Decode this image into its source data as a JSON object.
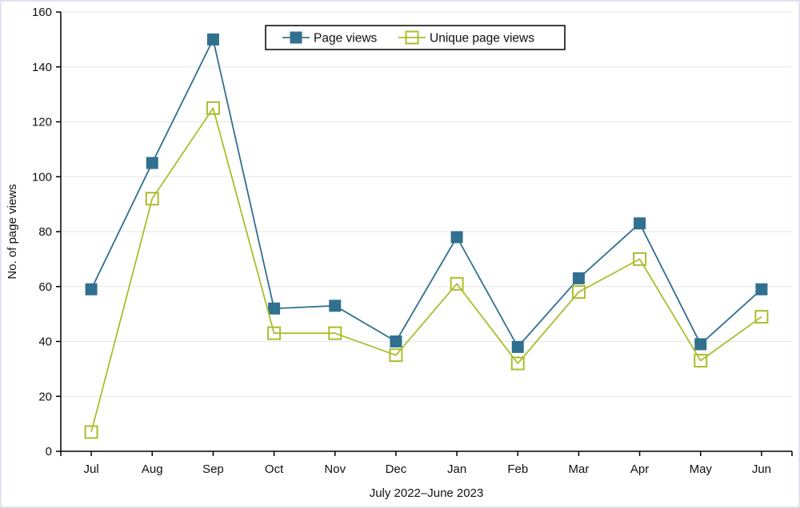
{
  "page": {
    "background": "#ffffff",
    "border_color": "#dfe5ee"
  },
  "chart_data": {
    "type": "line",
    "title": "",
    "categories": [
      "Jul",
      "Aug",
      "Sep",
      "Oct",
      "Nov",
      "Dec",
      "Jan",
      "Feb",
      "Mar",
      "Apr",
      "May",
      "Jun"
    ],
    "series": [
      {
        "name": "Page views",
        "color": "#31708f",
        "marker": "filled-square",
        "values": [
          59,
          105,
          150,
          52,
          53,
          40,
          78,
          38,
          63,
          83,
          39,
          59
        ]
      },
      {
        "name": "Unique page views",
        "color": "#abbd2c",
        "marker": "open-square",
        "values": [
          7,
          92,
          125,
          43,
          43,
          35,
          61,
          32,
          58,
          70,
          33,
          49
        ]
      }
    ],
    "xlabel": "July 2022–June 2023",
    "ylabel": "No. of page views",
    "ylim": [
      0,
      160
    ],
    "ytick_step": 20,
    "yticks": [
      0,
      20,
      40,
      60,
      80,
      100,
      120,
      140,
      160
    ],
    "grid": true,
    "gridline_color": "#e6e6e6",
    "axis_color": "#000000",
    "text_color": "#111111",
    "legend_position": "top-center",
    "legend_border_color": "#000000",
    "legend_background": "#ffffff"
  }
}
